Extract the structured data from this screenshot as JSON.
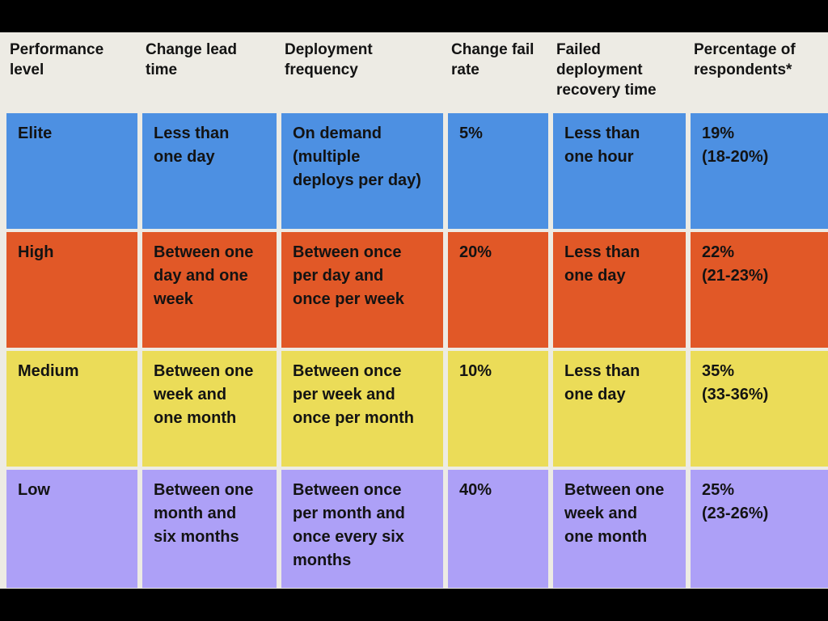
{
  "title": "DORA software delivery performance levels table",
  "colors": {
    "frame": "#000000",
    "background": "#EDEBE4",
    "elite_row": "#4D90E2",
    "high_row": "#E15827",
    "medium_row": "#EBDC58",
    "low_row": "#ADA0F7",
    "text": "#131313"
  },
  "chart_data": {
    "type": "table",
    "columns": [
      "Performance\nlevel",
      "Change lead\ntime",
      "Deployment\nfrequency",
      "Change fail\nrate",
      "Failed\ndeployment\nrecovery time",
      "Percentage of\nrespondents*"
    ],
    "rows": [
      {
        "performance_level": "Elite",
        "color": "#4D90E2",
        "cells": [
          "Elite",
          "Less than\none day",
          "On demand\n(multiple\ndeploys per day)",
          "5%",
          "Less than\none hour",
          "19%\n(18-20%)"
        ]
      },
      {
        "performance_level": "High",
        "color": "#E15827",
        "cells": [
          "High",
          "Between one\nday and one\nweek",
          "Between once\nper day and\nonce per week",
          "20%",
          "Less than\none day",
          "22%\n(21-23%)"
        ]
      },
      {
        "performance_level": "Medium",
        "color": "#EBDC58",
        "cells": [
          "Medium",
          "Between one\nweek and\none month",
          "Between once\nper week and\nonce per month",
          "10%",
          "Less than\none day",
          "35%\n(33-36%)"
        ]
      },
      {
        "performance_level": "Low",
        "color": "#ADA0F7",
        "cells": [
          "Low",
          "Between one\nmonth and\nsix months",
          "Between once\nper month and\nonce every six\nmonths",
          "40%",
          "Between one\nweek and\none month",
          "25%\n(23-26%)"
        ]
      }
    ]
  }
}
